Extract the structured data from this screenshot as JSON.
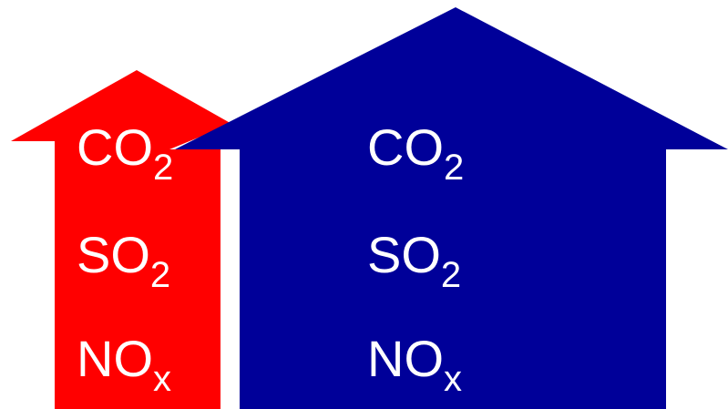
{
  "colors": {
    "small_arrow": "#ff0000",
    "large_arrow": "#000099",
    "text": "#ffffff",
    "background": "#ffffff"
  },
  "small_arrow": {
    "labels": [
      {
        "base": "CO",
        "sub": "2"
      },
      {
        "base": "SO",
        "sub": "2"
      },
      {
        "base": "NO",
        "sub": "x"
      }
    ]
  },
  "large_arrow": {
    "labels": [
      {
        "base": "CO",
        "sub": "2"
      },
      {
        "base": "SO",
        "sub": "2"
      },
      {
        "base": "NO",
        "sub": "x"
      }
    ]
  }
}
